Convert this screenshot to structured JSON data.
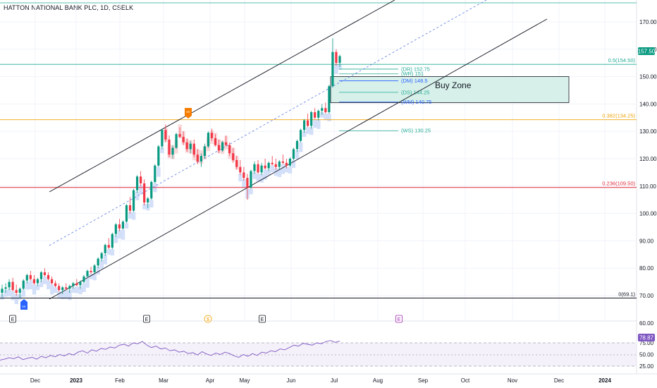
{
  "header": {
    "title": "HATTON NATIONAL BANK PLC, 1D, CSELK"
  },
  "colors": {
    "up": "#089981",
    "down": "#f23645",
    "channel": "#131722",
    "midline": "#5b7be0",
    "fib_05": "#22ab94",
    "fib_0382": "#f0a30a",
    "fib_0236": "#e02b3c",
    "fib_0": "#131722",
    "buyzone_fill": "#d7f0ea",
    "rsi": "#7e57c2",
    "price_badge": "#089981",
    "pivot_green": "#22ab94",
    "pivot_blue": "#2962ff",
    "cloud_blue": "#c9d8f7",
    "cloud_red": "#f8d2d4"
  },
  "chart_data": {
    "type": "candlestick",
    "ylim": [
      66,
      176
    ],
    "price_axis_ticks": [
      "170.00",
      "160.00",
      "150.00",
      "140.00",
      "130.00",
      "120.00",
      "110.00",
      "100.00",
      "90.00",
      "80.00",
      "70.00",
      "60.00"
    ],
    "x_axis_ticks": [
      "Dec",
      "2023",
      "Feb",
      "Mar",
      "Apr",
      "May",
      "Jun",
      "Jul",
      "Aug",
      "Sep",
      "Oct",
      "Nov",
      "Dec",
      "2024"
    ],
    "last_price": "157.50",
    "fib_levels": [
      {
        "label": "0.5(154.50)",
        "value": 154.5,
        "color_key": "fib_05"
      },
      {
        "label": "0.382(134.25)",
        "value": 134.25,
        "color_key": "fib_0382"
      },
      {
        "label": "0.236(109.50)",
        "value": 109.5,
        "color_key": "fib_0236"
      },
      {
        "label": "0(69.1)",
        "value": 69.1,
        "color_key": "fib_0"
      }
    ],
    "pivots": [
      {
        "label": "(DR)",
        "value_text": "152.75",
        "value": 152.75,
        "color_key": "pivot_green"
      },
      {
        "label": "(WR)",
        "value_text": "151",
        "value": 151.0,
        "color_key": "pivot_green"
      },
      {
        "label": "(DM)",
        "value_text": "148.5",
        "value": 148.5,
        "color_key": "pivot_blue"
      },
      {
        "label": "(DS)",
        "value_text": "144.25",
        "value": 144.25,
        "color_key": "pivot_green"
      },
      {
        "label": "(WM)",
        "value_text": "140.75",
        "value": 140.75,
        "color_key": "pivot_blue"
      },
      {
        "label": "(WS)",
        "value_text": "130.25",
        "value": 130.25,
        "color_key": "pivot_green"
      }
    ],
    "buy_zone": {
      "label": "Buy Zone",
      "top": 150.0,
      "bottom": 140.5
    },
    "events": [
      "E",
      "E",
      "$",
      "E",
      "E"
    ],
    "rsi": {
      "value_text": "78.87",
      "axis_ticks": [
        "75.00",
        "50.00",
        "25.00"
      ],
      "series": [
        38,
        40,
        43,
        41,
        45,
        39,
        42,
        44,
        40,
        46,
        43,
        48,
        45,
        50,
        47,
        52,
        49,
        55,
        58,
        53,
        60,
        57,
        63,
        61,
        66,
        64,
        70,
        72,
        68,
        75,
        73,
        78,
        70,
        65,
        68,
        62,
        64,
        58,
        60,
        55,
        57,
        52,
        54,
        49,
        56,
        51,
        48,
        53,
        50,
        55,
        52,
        47,
        44,
        50,
        46,
        52,
        48,
        55,
        53,
        58,
        56,
        62,
        60,
        65,
        70,
        68,
        74,
        72,
        70,
        75,
        73,
        78,
        80,
        76,
        78.87
      ]
    },
    "candles": [
      [
        71.0,
        74.0,
        69.5,
        72.5
      ],
      [
        72.5,
        74.5,
        71.0,
        73.0
      ],
      [
        73.0,
        76.0,
        72.0,
        75.0
      ],
      [
        75.0,
        76.5,
        71.5,
        72.0
      ],
      [
        72.0,
        74.0,
        70.0,
        71.0
      ],
      [
        71.0,
        73.0,
        69.1,
        72.5
      ],
      [
        72.5,
        76.0,
        72.0,
        75.5
      ],
      [
        75.5,
        78.0,
        74.5,
        77.5
      ],
      [
        77.5,
        79.0,
        75.5,
        76.0
      ],
      [
        76.0,
        77.5,
        74.0,
        74.5
      ],
      [
        74.5,
        76.5,
        73.5,
        76.0
      ],
      [
        76.0,
        79.0,
        75.0,
        78.5
      ],
      [
        78.5,
        80.0,
        77.0,
        77.5
      ],
      [
        77.5,
        78.5,
        75.5,
        76.0
      ],
      [
        76.0,
        77.0,
        74.0,
        74.5
      ],
      [
        74.5,
        75.5,
        73.0,
        73.5
      ],
      [
        73.5,
        74.5,
        71.5,
        72.0
      ],
      [
        72.0,
        73.5,
        70.5,
        73.0
      ],
      [
        73.0,
        74.5,
        72.0,
        72.5
      ],
      [
        72.5,
        74.0,
        71.0,
        73.5
      ],
      [
        73.5,
        75.0,
        72.5,
        74.5
      ],
      [
        74.5,
        76.0,
        73.5,
        73.8
      ],
      [
        73.8,
        75.5,
        72.5,
        75.0
      ],
      [
        75.0,
        77.5,
        74.5,
        77.0
      ],
      [
        77.0,
        79.5,
        76.5,
        79.0
      ],
      [
        79.0,
        80.5,
        78.0,
        78.5
      ],
      [
        78.5,
        81.5,
        78.0,
        81.0
      ],
      [
        81.0,
        84.0,
        80.0,
        83.5
      ],
      [
        83.5,
        86.0,
        82.5,
        85.5
      ],
      [
        85.5,
        89.0,
        84.5,
        88.5
      ],
      [
        88.5,
        91.0,
        87.0,
        87.5
      ],
      [
        87.5,
        93.0,
        87.0,
        92.5
      ],
      [
        92.5,
        96.5,
        91.5,
        96.0
      ],
      [
        96.0,
        98.0,
        93.5,
        94.5
      ],
      [
        94.5,
        97.5,
        94.0,
        97.0
      ],
      [
        97.0,
        103.5,
        96.5,
        103.0
      ],
      [
        103.0,
        106.0,
        100.0,
        101.0
      ],
      [
        101.0,
        109.0,
        100.5,
        108.5
      ],
      [
        108.5,
        114.0,
        107.5,
        113.5
      ],
      [
        113.5,
        115.5,
        110.0,
        111.0
      ],
      [
        111.0,
        112.5,
        103.0,
        104.0
      ],
      [
        104.0,
        106.0,
        102.0,
        105.5
      ],
      [
        105.5,
        112.0,
        105.0,
        111.5
      ],
      [
        111.5,
        118.0,
        111.0,
        117.5
      ],
      [
        117.5,
        125.0,
        117.0,
        124.5
      ],
      [
        124.5,
        131.0,
        123.5,
        130.5
      ],
      [
        130.5,
        132.5,
        126.0,
        127.0
      ],
      [
        127.0,
        128.5,
        120.5,
        121.5
      ],
      [
        121.5,
        125.0,
        120.0,
        124.0
      ],
      [
        124.0,
        129.5,
        123.5,
        129.0
      ],
      [
        129.0,
        131.5,
        127.5,
        128.0
      ],
      [
        128.0,
        130.0,
        125.0,
        126.0
      ],
      [
        126.0,
        127.5,
        122.5,
        123.5
      ],
      [
        123.5,
        126.5,
        122.0,
        125.5
      ],
      [
        125.5,
        127.0,
        120.5,
        121.5
      ],
      [
        121.5,
        123.5,
        118.0,
        119.0
      ],
      [
        119.0,
        122.0,
        117.0,
        121.0
      ],
      [
        121.0,
        125.5,
        120.0,
        124.5
      ],
      [
        124.5,
        130.0,
        124.0,
        129.5
      ],
      [
        129.5,
        131.0,
        126.5,
        127.5
      ],
      [
        127.5,
        129.0,
        124.5,
        125.0
      ],
      [
        125.0,
        127.0,
        122.0,
        123.0
      ],
      [
        123.0,
        126.5,
        122.5,
        126.0
      ],
      [
        126.0,
        128.5,
        124.5,
        125.0
      ],
      [
        125.0,
        126.0,
        121.0,
        122.0
      ],
      [
        122.0,
        124.0,
        118.5,
        119.5
      ],
      [
        119.5,
        121.0,
        116.0,
        117.0
      ],
      [
        117.0,
        119.5,
        114.0,
        115.0
      ],
      [
        115.0,
        117.0,
        112.0,
        113.0
      ],
      [
        113.0,
        114.5,
        105.0,
        109.5
      ],
      [
        109.5,
        116.0,
        109.0,
        115.5
      ],
      [
        115.5,
        119.0,
        114.5,
        118.0
      ],
      [
        118.0,
        119.5,
        114.5,
        115.0
      ],
      [
        115.0,
        118.5,
        114.0,
        117.5
      ],
      [
        117.5,
        120.0,
        116.0,
        116.5
      ],
      [
        116.5,
        119.0,
        115.5,
        118.5
      ],
      [
        118.5,
        121.0,
        117.5,
        118.0
      ],
      [
        118.0,
        120.0,
        116.0,
        117.0
      ],
      [
        117.0,
        119.5,
        116.0,
        119.0
      ],
      [
        119.0,
        121.5,
        118.0,
        118.5
      ],
      [
        118.5,
        120.0,
        116.5,
        117.5
      ],
      [
        117.5,
        120.5,
        117.0,
        120.0
      ],
      [
        120.0,
        124.0,
        119.5,
        123.5
      ],
      [
        123.5,
        127.0,
        122.5,
        126.5
      ],
      [
        126.5,
        131.0,
        126.0,
        130.5
      ],
      [
        130.5,
        134.5,
        129.5,
        134.0
      ],
      [
        134.0,
        136.5,
        131.5,
        132.0
      ],
      [
        132.0,
        137.5,
        131.0,
        137.0
      ],
      [
        137.0,
        138.5,
        134.5,
        135.0
      ],
      [
        135.0,
        138.0,
        134.0,
        137.5
      ],
      [
        137.5,
        140.0,
        136.0,
        138.5
      ],
      [
        138.5,
        140.5,
        136.5,
        137.0
      ],
      [
        137.0,
        147.0,
        136.5,
        146.5
      ],
      [
        146.5,
        164.0,
        146.0,
        159.0
      ],
      [
        159.0,
        160.0,
        154.0,
        155.0
      ],
      [
        155.0,
        158.0,
        153.5,
        157.5
      ]
    ]
  }
}
